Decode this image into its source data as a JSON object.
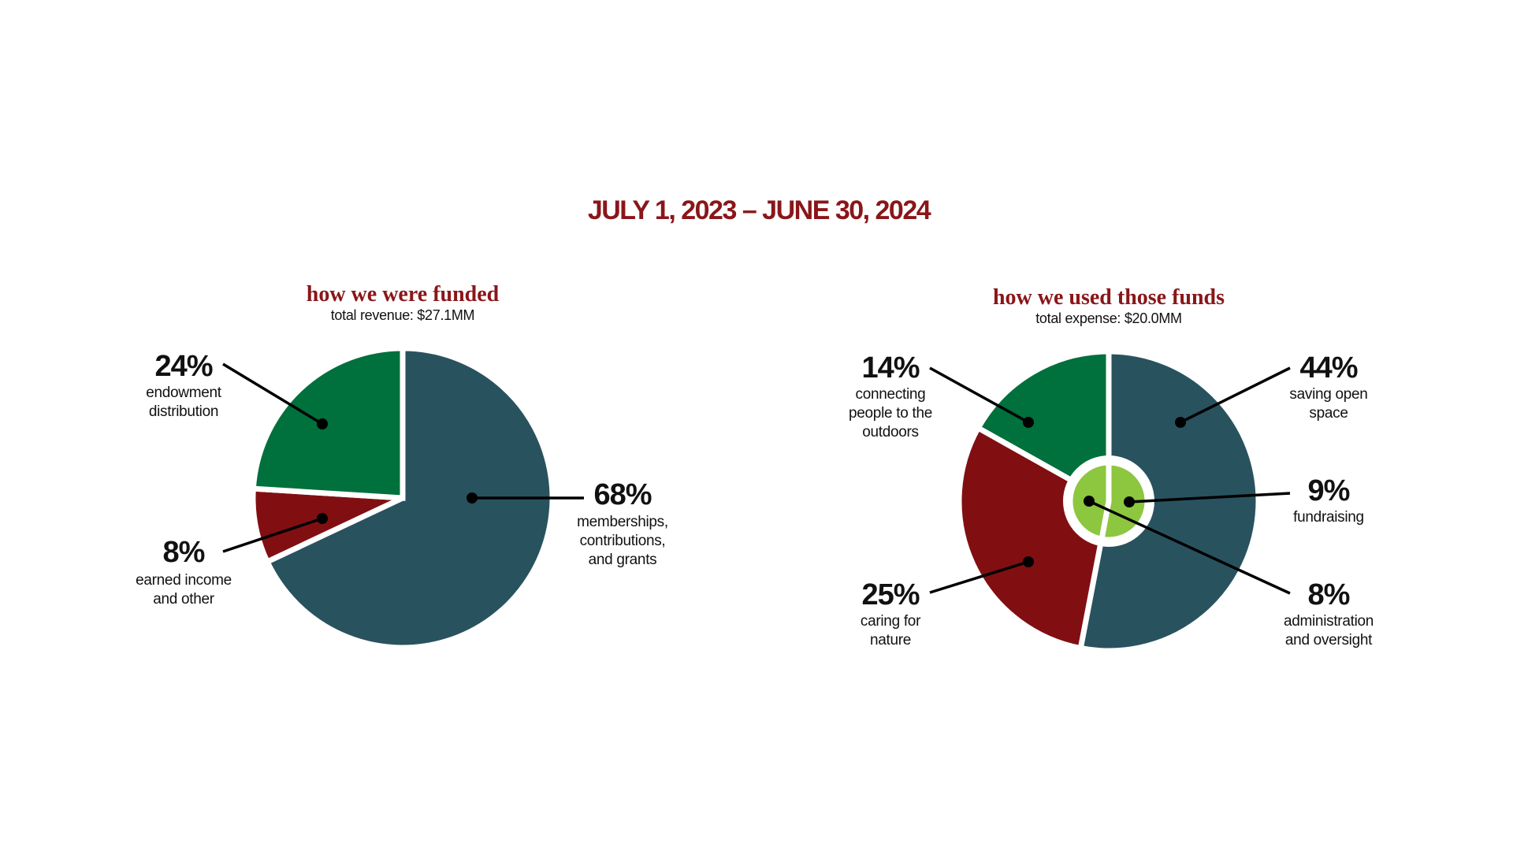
{
  "title": "JULY 1, 2023 – JUNE 30, 2024",
  "chart_data": [
    {
      "type": "pie",
      "title": "how we were funded",
      "subtitle": "total revenue: $27.1MM",
      "slices": [
        {
          "label": [
            "memberships,",
            "contributions,",
            "and grants"
          ],
          "value": 68,
          "pct_text": "68%",
          "color": "#29525f"
        },
        {
          "label": [
            "earned income",
            "and other"
          ],
          "value": 8,
          "pct_text": "8%",
          "color": "#810f12"
        },
        {
          "label": [
            "endowment",
            "distribution"
          ],
          "value": 24,
          "pct_text": "24%",
          "color": "#00703c"
        }
      ]
    },
    {
      "type": "pie",
      "title": "how we used those funds",
      "subtitle": "total expense: $20.0MM",
      "slices": [
        {
          "label": [
            "saving open",
            "space"
          ],
          "value": 44,
          "pct_text": "44%",
          "color": "#29525f",
          "ring": "outer"
        },
        {
          "label": [
            "caring for",
            "nature"
          ],
          "value": 25,
          "pct_text": "25%",
          "color": "#810f12",
          "ring": "outer"
        },
        {
          "label": [
            "connecting",
            "people to the",
            "outdoors"
          ],
          "value": 14,
          "pct_text": "14%",
          "color": "#00703c",
          "ring": "outer"
        },
        {
          "label": [
            "fundraising"
          ],
          "value": 9,
          "pct_text": "9%",
          "color": "#8dc63f",
          "ring": "inner"
        },
        {
          "label": [
            "administration",
            "and oversight"
          ],
          "value": 8,
          "pct_text": "8%",
          "color": "#8dc63f",
          "ring": "inner"
        }
      ]
    }
  ]
}
